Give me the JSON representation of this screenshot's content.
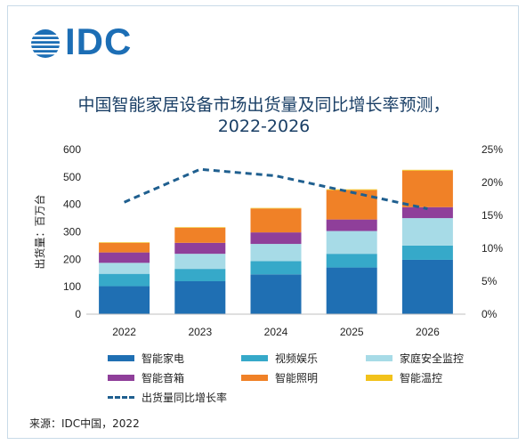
{
  "brand": {
    "logo_text": "IDC",
    "color": "#1c6eb5"
  },
  "chart_data": {
    "type": "bar",
    "stacked": true,
    "title": "中国智能家居设备市场出货量及同比增长率预测，",
    "subtitle": "2022-2026",
    "ylabel": "出货量：百万台",
    "ylim": [
      0,
      600
    ],
    "y_ticks": [
      "0",
      "100",
      "200",
      "300",
      "400",
      "500",
      "600"
    ],
    "y2lim": [
      0,
      25
    ],
    "y2_ticks": [
      "0%",
      "5%",
      "10%",
      "15%",
      "20%",
      "25%"
    ],
    "categories": [
      "2022",
      "2023",
      "2024",
      "2025",
      "2026"
    ],
    "series": [
      {
        "name": "智能家电",
        "color": "#1f6fb3",
        "values": [
          102,
          120,
          145,
          170,
          198
        ]
      },
      {
        "name": "视频娱乐",
        "color": "#36a9c9",
        "values": [
          45,
          45,
          48,
          50,
          52
        ]
      },
      {
        "name": "家庭安全监控",
        "color": "#a7dbe7",
        "values": [
          40,
          55,
          63,
          83,
          100
        ]
      },
      {
        "name": "智能音箱",
        "color": "#8f3f9a",
        "values": [
          38,
          40,
          42,
          42,
          40
        ]
      },
      {
        "name": "智能照明",
        "color": "#f08127",
        "values": [
          35,
          55,
          87,
          107,
          133
        ]
      },
      {
        "name": "智能温控",
        "color": "#f2c21b",
        "values": [
          2,
          2,
          2,
          3,
          3
        ]
      }
    ],
    "line_series": {
      "name": "出货量同比增长率",
      "color": "#1f5f8f",
      "axis": "right",
      "values": [
        17,
        22,
        21,
        18.5,
        16
      ]
    },
    "grid": false,
    "legend_position": "bottom"
  },
  "source": "来源：IDC中国，2022"
}
